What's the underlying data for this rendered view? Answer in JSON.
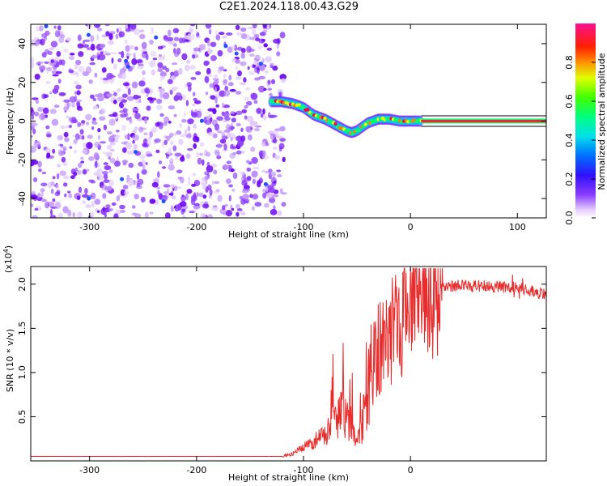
{
  "title": "C2E1.2024.118.00.43.G29",
  "colors": {
    "trace": "#e82c2c",
    "scatter": "#7a2cf0",
    "line": "#ff1a3c",
    "axis": "#000000"
  },
  "chart_data": [
    {
      "type": "heatmap",
      "xlabel": "Height of straight line (km)",
      "ylabel": "Frequency (Hz)",
      "xlim": [
        -355,
        127
      ],
      "ylim": [
        -50,
        50
      ],
      "xticks": [
        -300,
        -200,
        -100,
        0,
        100
      ],
      "yticks": [
        -40,
        -20,
        0,
        20,
        40
      ],
      "xtick_labels": [
        "-300",
        "-200",
        "-100",
        "0",
        "100"
      ],
      "ytick_labels": [
        "-40",
        "-20",
        "0",
        "20",
        "40"
      ],
      "noise_region_x": [
        -355,
        -118
      ],
      "ridge": {
        "x": [
          -130,
          -120,
          -110,
          -100,
          -90,
          -80,
          -70,
          -60,
          -55,
          -50,
          -45,
          -40,
          -30,
          -20,
          -10,
          0,
          10,
          127
        ],
        "y": [
          10,
          10,
          9,
          7,
          3,
          1,
          -2,
          -5,
          -6,
          -5,
          -3,
          -1,
          1,
          1,
          0,
          0,
          0,
          0
        ]
      },
      "colorbar": {
        "label": "Normalized spectral amplitude",
        "range": [
          0,
          1
        ],
        "ticks": [
          0.0,
          0.2,
          0.4,
          0.6,
          0.8
        ],
        "tick_labels": [
          "0.0",
          "0.2",
          "0.4",
          "0.6",
          "0.8"
        ]
      },
      "grid": false
    },
    {
      "type": "line",
      "xlabel": "Height of straight line (km)",
      "ylabel": "SNR (10 * v/v)",
      "scale_label": "(x10",
      "scale_exp": "4",
      "scale_close": ")",
      "xlim": [
        -355,
        127
      ],
      "ylim": [
        0,
        2.2
      ],
      "xticks": [
        -300,
        -200,
        -100,
        0
      ],
      "yticks": [
        0.5,
        1.0,
        1.5,
        2.0
      ],
      "xtick_labels": [
        "-300",
        "-200",
        "-100",
        "0"
      ],
      "ytick_labels": [
        "0.5",
        "1.0",
        "1.5",
        "2.0"
      ],
      "series": [
        {
          "x": [
            -355,
            -300,
            -250,
            -200,
            -150,
            -120,
            -110,
            -100,
            -90,
            -80,
            -70,
            -65,
            -60,
            -55,
            -50,
            -45,
            -40,
            -35,
            -30,
            -25,
            -20,
            -15,
            -10,
            -5,
            0,
            5,
            10,
            15,
            20,
            25,
            30,
            40,
            50,
            60,
            70,
            80,
            90,
            95,
            100,
            110,
            120,
            127
          ],
          "y": [
            0.05,
            0.05,
            0.05,
            0.05,
            0.05,
            0.05,
            0.08,
            0.15,
            0.22,
            0.3,
            0.45,
            0.55,
            0.55,
            0.4,
            0.2,
            0.4,
            0.75,
            1.05,
            1.25,
            1.35,
            1.45,
            1.55,
            1.62,
            1.68,
            1.72,
            1.78,
            1.82,
            1.88,
            1.92,
            1.95,
            1.97,
            1.98,
            1.98,
            1.98,
            1.98,
            1.97,
            1.97,
            1.97,
            1.95,
            1.93,
            1.9,
            1.88
          ]
        }
      ],
      "grid": false
    }
  ]
}
